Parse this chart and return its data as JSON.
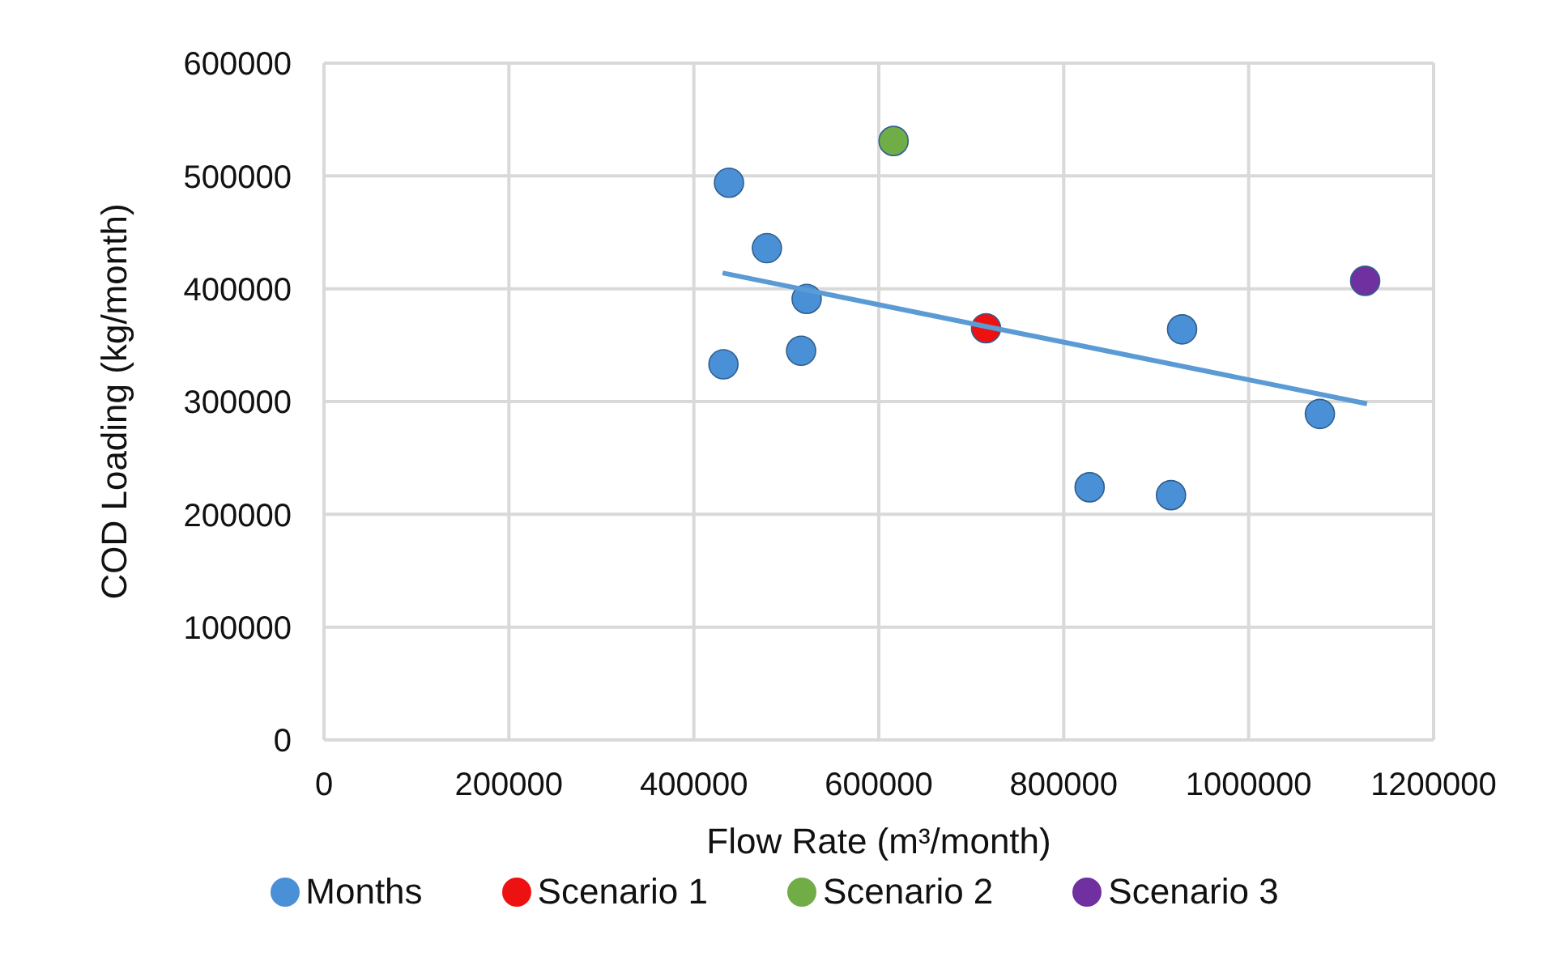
{
  "chart_data": {
    "type": "scatter",
    "xlabel": "Flow Rate (m³/month)",
    "ylabel": "COD Loading (kg/month)",
    "xlim": [
      0,
      1200000
    ],
    "xticks": [
      0,
      200000,
      400000,
      600000,
      800000,
      1000000,
      1200000
    ],
    "ylim": [
      0,
      600000
    ],
    "yticks": [
      0,
      100000,
      200000,
      300000,
      400000,
      500000,
      600000
    ],
    "grid": true,
    "legend": "bottom",
    "marker": "circle",
    "series": [
      {
        "name": "Months",
        "color": "#4a90d6",
        "x": [
          438000,
          479000,
          522000,
          516000,
          432000,
          928000,
          828000,
          916000,
          1077000
        ],
        "values": [
          494000,
          436000,
          391000,
          345000,
          333000,
          364000,
          224000,
          217000,
          289000
        ]
      },
      {
        "name": "Scenario 1",
        "color": "#ee1111",
        "x": [
          716000
        ],
        "values": [
          365000
        ]
      },
      {
        "name": "Scenario 2",
        "color": "#70ad47",
        "x": [
          616000
        ],
        "values": [
          531000
        ]
      },
      {
        "name": "Scenario 3",
        "color": "#7030a0",
        "x": [
          1126000
        ],
        "values": [
          407000
        ]
      },
      {
        "type": "line",
        "marker": "none",
        "color": "#5b9bd5",
        "x": [
          431000,
          1128000
        ],
        "values": [
          414000,
          298000
        ]
      }
    ]
  }
}
